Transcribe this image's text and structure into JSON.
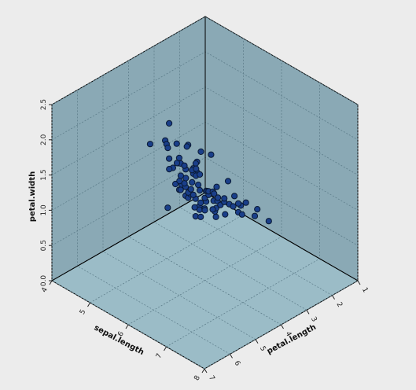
{
  "chart_data": {
    "type": "scatter",
    "projection": "3d",
    "axes": {
      "x": {
        "label": "sepal.length",
        "ticks": [
          "4",
          "5",
          "6",
          "7",
          "8"
        ],
        "range": [
          4,
          8
        ]
      },
      "y": {
        "label": "petal.length",
        "ticks": [
          "1",
          "2",
          "3",
          "4",
          "5",
          "6",
          "7"
        ],
        "range": [
          1,
          7
        ]
      },
      "z": {
        "label": "petal.width",
        "ticks": [
          "0.0",
          "0.5",
          "1.0",
          "1.5",
          "2.0",
          "2.5"
        ],
        "range": [
          0,
          2.5
        ]
      }
    },
    "grid": true,
    "colors": {
      "background": "#ececec",
      "pane": "#8aa9b5",
      "floor": "#9bbcc7",
      "marker": "#1a3f8a",
      "marker_edge": "#0a1a33"
    },
    "points": [
      [
        4.3,
        1.1,
        0.1
      ],
      [
        4.4,
        1.3,
        0.2
      ],
      [
        4.5,
        1.3,
        0.3
      ],
      [
        4.6,
        1.4,
        0.2
      ],
      [
        4.7,
        1.3,
        0.2
      ],
      [
        4.8,
        1.6,
        0.2
      ],
      [
        4.9,
        1.4,
        0.2
      ],
      [
        5.0,
        1.4,
        0.2
      ],
      [
        5.0,
        1.6,
        0.6
      ],
      [
        5.1,
        1.5,
        0.4
      ],
      [
        5.1,
        1.9,
        0.4
      ],
      [
        5.2,
        1.5,
        0.2
      ],
      [
        5.3,
        1.5,
        0.2
      ],
      [
        5.4,
        1.7,
        0.4
      ],
      [
        5.5,
        1.3,
        0.2
      ],
      [
        5.7,
        1.5,
        0.4
      ],
      [
        5.8,
        1.2,
        0.2
      ],
      [
        4.8,
        1.9,
        0.2
      ],
      [
        5.0,
        1.2,
        0.2
      ],
      [
        5.4,
        1.5,
        0.4
      ],
      [
        4.9,
        3.3,
        1.0
      ],
      [
        5.0,
        3.5,
        1.0
      ],
      [
        5.2,
        3.9,
        1.4
      ],
      [
        5.5,
        4.0,
        1.3
      ],
      [
        5.5,
        3.8,
        1.1
      ],
      [
        5.6,
        3.6,
        1.3
      ],
      [
        5.6,
        4.2,
        1.3
      ],
      [
        5.7,
        4.2,
        1.2
      ],
      [
        5.7,
        4.5,
        1.3
      ],
      [
        5.8,
        3.9,
        1.2
      ],
      [
        5.8,
        4.1,
        1.0
      ],
      [
        5.9,
        4.2,
        1.5
      ],
      [
        6.0,
        4.0,
        1.0
      ],
      [
        6.0,
        4.5,
        1.5
      ],
      [
        6.1,
        4.7,
        1.4
      ],
      [
        6.2,
        4.3,
        1.3
      ],
      [
        6.3,
        4.4,
        1.3
      ],
      [
        6.4,
        4.5,
        1.5
      ],
      [
        6.5,
        4.6,
        1.5
      ],
      [
        6.6,
        4.4,
        1.4
      ],
      [
        6.7,
        4.7,
        1.5
      ],
      [
        6.8,
        4.8,
        1.4
      ],
      [
        6.9,
        4.9,
        1.5
      ],
      [
        7.0,
        4.7,
        1.4
      ],
      [
        6.1,
        4.0,
        1.3
      ],
      [
        6.3,
        4.9,
        1.5
      ],
      [
        5.9,
        4.8,
        1.8
      ],
      [
        6.7,
        5.0,
        1.7
      ],
      [
        5.4,
        4.5,
        1.5
      ],
      [
        5.1,
        3.0,
        1.1
      ],
      [
        4.9,
        4.5,
        1.7
      ],
      [
        5.6,
        4.9,
        2.0
      ],
      [
        5.7,
        5.0,
        2.0
      ],
      [
        5.8,
        5.1,
        2.4
      ],
      [
        5.8,
        5.1,
        1.9
      ],
      [
        6.0,
        5.0,
        1.5
      ],
      [
        6.1,
        5.6,
        1.4
      ],
      [
        6.2,
        5.4,
        2.3
      ],
      [
        6.3,
        5.6,
        1.8
      ],
      [
        6.3,
        6.0,
        2.5
      ],
      [
        6.4,
        5.3,
        2.3
      ],
      [
        6.4,
        5.6,
        2.2
      ],
      [
        6.5,
        5.8,
        2.2
      ],
      [
        6.5,
        5.2,
        2.0
      ],
      [
        6.7,
        5.7,
        2.5
      ],
      [
        6.7,
        5.8,
        1.8
      ],
      [
        6.8,
        5.5,
        2.1
      ],
      [
        6.9,
        5.7,
        2.3
      ],
      [
        7.1,
        5.9,
        2.1
      ],
      [
        7.2,
        6.0,
        1.8
      ],
      [
        7.2,
        6.1,
        2.5
      ],
      [
        7.3,
        6.3,
        1.8
      ],
      [
        7.4,
        6.1,
        1.9
      ],
      [
        7.6,
        6.6,
        2.1
      ],
      [
        7.7,
        6.7,
        2.2
      ],
      [
        7.7,
        6.9,
        2.3
      ],
      [
        7.9,
        6.4,
        2.0
      ],
      [
        6.1,
        4.9,
        1.8
      ],
      [
        6.4,
        5.5,
        1.8
      ],
      [
        6.0,
        4.8,
        1.8
      ],
      [
        5.9,
        5.1,
        1.8
      ],
      [
        6.2,
        4.8,
        1.8
      ],
      [
        6.3,
        5.1,
        1.5
      ],
      [
        6.9,
        5.1,
        2.3
      ],
      [
        7.7,
        6.7,
        2.0
      ],
      [
        6.5,
        5.5,
        1.8
      ],
      [
        6.3,
        4.9,
        1.8
      ],
      [
        6.7,
        5.2,
        2.3
      ]
    ]
  }
}
